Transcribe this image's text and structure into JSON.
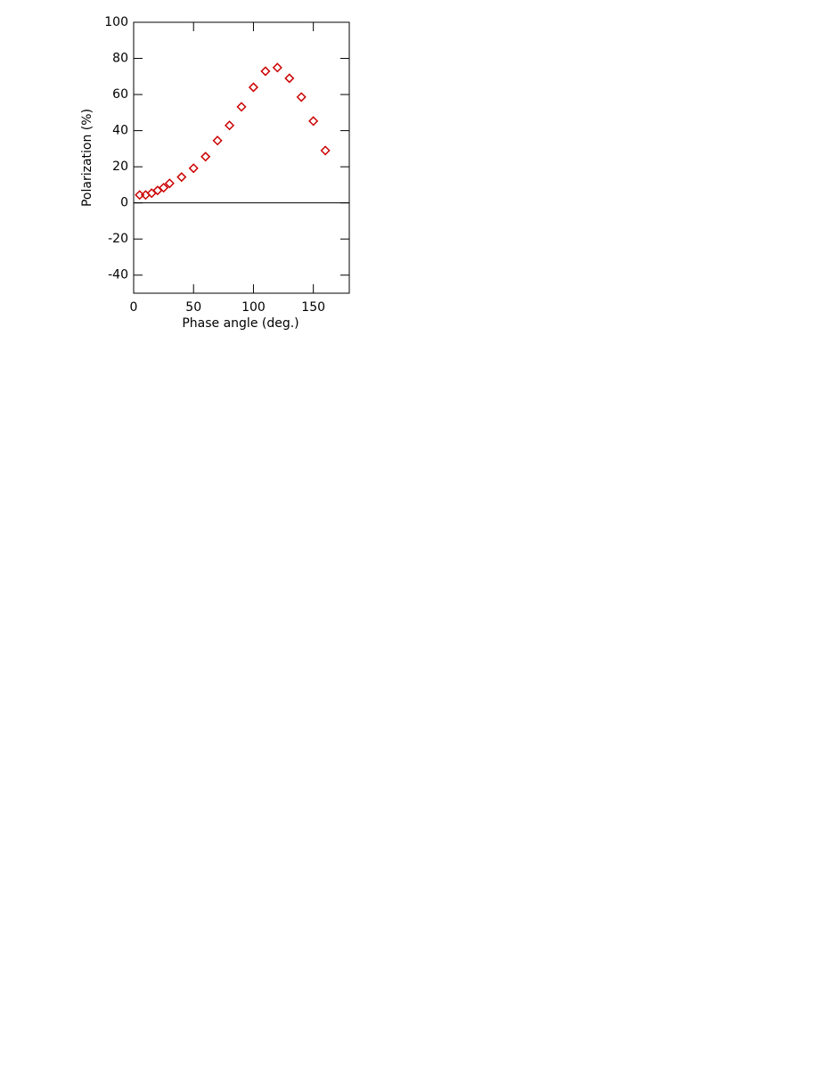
{
  "chart_data": {
    "type": "scatter",
    "x_label": "Phase angle (deg.)",
    "y_label": "Polarization (%)",
    "x": [
      5,
      10,
      15,
      20,
      25,
      30,
      40,
      50,
      60,
      70,
      80,
      90,
      100,
      110,
      120,
      130,
      140,
      150,
      160
    ],
    "values": [
      4.4,
      4.4,
      5.4,
      6.9,
      8.4,
      10.8,
      14.3,
      19.2,
      25.6,
      34.5,
      42.9,
      53.2,
      64,
      72.9,
      74.9,
      69,
      58.6,
      45.3,
      29
    ],
    "color": "#cc0000",
    "marker": "diamond",
    "xlim": [
      0,
      180
    ],
    "xticks": [
      0,
      50,
      100,
      150
    ],
    "ylim": [
      -50,
      100
    ],
    "yticks": [
      -40,
      -20,
      0,
      20,
      40,
      60,
      80,
      100
    ],
    "hline": 0,
    "grid": false
  }
}
